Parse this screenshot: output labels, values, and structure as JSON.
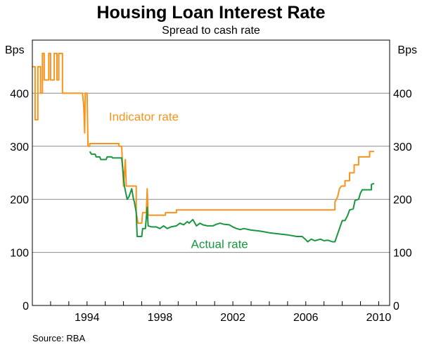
{
  "chart_data": {
    "type": "line",
    "title": "Housing Loan Interest Rate",
    "subtitle": "Spread to cash rate",
    "y_unit_left": "Bps",
    "y_unit_right": "Bps",
    "ylim": [
      0,
      500
    ],
    "yticks": [
      0,
      100,
      200,
      300,
      400
    ],
    "xlim": [
      1991.0,
      2010.6
    ],
    "xticks": [
      1994,
      1998,
      2002,
      2006,
      2010
    ],
    "grid": "horizontal",
    "source": "Source: RBA",
    "series": [
      {
        "name": "Indicator rate",
        "color": "#f7941d",
        "points": [
          [
            1991.0,
            450
          ],
          [
            1991.15,
            450
          ],
          [
            1991.15,
            350
          ],
          [
            1991.3,
            350
          ],
          [
            1991.3,
            450
          ],
          [
            1991.45,
            450
          ],
          [
            1991.45,
            400
          ],
          [
            1991.55,
            400
          ],
          [
            1991.55,
            475
          ],
          [
            1991.65,
            475
          ],
          [
            1991.65,
            425
          ],
          [
            1991.9,
            425
          ],
          [
            1991.9,
            475
          ],
          [
            1992.0,
            475
          ],
          [
            1992.0,
            425
          ],
          [
            1992.2,
            425
          ],
          [
            1992.2,
            475
          ],
          [
            1992.35,
            475
          ],
          [
            1992.35,
            425
          ],
          [
            1992.45,
            425
          ],
          [
            1992.45,
            475
          ],
          [
            1992.65,
            475
          ],
          [
            1992.65,
            400
          ],
          [
            1993.75,
            400
          ],
          [
            1993.75,
            400
          ],
          [
            1993.82,
            375
          ],
          [
            1993.87,
            325
          ],
          [
            1993.9,
            400
          ],
          [
            1994.0,
            400
          ],
          [
            1994.05,
            300
          ],
          [
            1994.15,
            300
          ],
          [
            1994.15,
            305
          ],
          [
            1995.75,
            305
          ],
          [
            1995.75,
            300
          ],
          [
            1995.9,
            300
          ],
          [
            1996.0,
            225
          ],
          [
            1996.1,
            275
          ],
          [
            1996.15,
            225
          ],
          [
            1996.7,
            225
          ],
          [
            1996.7,
            175
          ],
          [
            1996.8,
            155
          ],
          [
            1997.0,
            155
          ],
          [
            1997.05,
            175
          ],
          [
            1997.25,
            175
          ],
          [
            1997.3,
            220
          ],
          [
            1997.35,
            170
          ],
          [
            1998.3,
            170
          ],
          [
            1998.3,
            175
          ],
          [
            1998.9,
            175
          ],
          [
            1998.9,
            180
          ],
          [
            2007.6,
            180
          ],
          [
            2007.6,
            195
          ],
          [
            2007.75,
            205
          ],
          [
            2007.85,
            220
          ],
          [
            2007.95,
            225
          ],
          [
            2008.15,
            225
          ],
          [
            2008.15,
            235
          ],
          [
            2008.4,
            235
          ],
          [
            2008.4,
            250
          ],
          [
            2008.65,
            250
          ],
          [
            2008.65,
            265
          ],
          [
            2008.9,
            265
          ],
          [
            2008.9,
            280
          ],
          [
            2009.5,
            280
          ],
          [
            2009.5,
            290
          ],
          [
            2009.75,
            290
          ]
        ]
      },
      {
        "name": "Actual rate",
        "color": "#1a9641",
        "points": [
          [
            1994.15,
            290
          ],
          [
            1994.25,
            285
          ],
          [
            1994.45,
            285
          ],
          [
            1994.5,
            280
          ],
          [
            1994.7,
            280
          ],
          [
            1994.75,
            275
          ],
          [
            1995.05,
            275
          ],
          [
            1995.1,
            280
          ],
          [
            1995.35,
            280
          ],
          [
            1995.4,
            278
          ],
          [
            1995.9,
            278
          ],
          [
            1996.05,
            225
          ],
          [
            1996.2,
            200
          ],
          [
            1996.3,
            205
          ],
          [
            1996.45,
            220
          ],
          [
            1996.55,
            200
          ],
          [
            1996.6,
            195
          ],
          [
            1996.7,
            175
          ],
          [
            1996.75,
            130
          ],
          [
            1997.0,
            130
          ],
          [
            1997.05,
            145
          ],
          [
            1997.2,
            145
          ],
          [
            1997.3,
            185
          ],
          [
            1997.35,
            150
          ],
          [
            1997.55,
            148
          ],
          [
            1997.8,
            148
          ],
          [
            1998.0,
            145
          ],
          [
            1998.2,
            150
          ],
          [
            1998.4,
            145
          ],
          [
            1998.6,
            148
          ],
          [
            1998.9,
            150
          ],
          [
            1999.1,
            155
          ],
          [
            1999.3,
            152
          ],
          [
            1999.5,
            158
          ],
          [
            1999.6,
            155
          ],
          [
            1999.8,
            162
          ],
          [
            2000.0,
            150
          ],
          [
            2000.2,
            155
          ],
          [
            2000.35,
            152
          ],
          [
            2000.6,
            150
          ],
          [
            2000.9,
            150
          ],
          [
            2001.1,
            153
          ],
          [
            2001.3,
            155
          ],
          [
            2001.5,
            153
          ],
          [
            2001.8,
            152
          ],
          [
            2002.0,
            148
          ],
          [
            2002.2,
            145
          ],
          [
            2002.4,
            143
          ],
          [
            2002.6,
            145
          ],
          [
            2003.0,
            142
          ],
          [
            2003.5,
            140
          ],
          [
            2004.0,
            137
          ],
          [
            2004.5,
            135
          ],
          [
            2005.0,
            133
          ],
          [
            2005.5,
            130
          ],
          [
            2005.8,
            130
          ],
          [
            2006.0,
            124
          ],
          [
            2006.1,
            120
          ],
          [
            2006.3,
            125
          ],
          [
            2006.5,
            122
          ],
          [
            2006.8,
            125
          ],
          [
            2007.0,
            122
          ],
          [
            2007.2,
            123
          ],
          [
            2007.3,
            122
          ],
          [
            2007.45,
            120
          ],
          [
            2007.6,
            120
          ],
          [
            2007.75,
            135
          ],
          [
            2007.9,
            150
          ],
          [
            2008.0,
            160
          ],
          [
            2008.15,
            160
          ],
          [
            2008.3,
            170
          ],
          [
            2008.4,
            180
          ],
          [
            2008.6,
            182
          ],
          [
            2008.7,
            198
          ],
          [
            2008.9,
            200
          ],
          [
            2009.0,
            212
          ],
          [
            2009.1,
            218
          ],
          [
            2009.6,
            218
          ],
          [
            2009.6,
            228
          ],
          [
            2009.75,
            230
          ]
        ]
      }
    ],
    "annotations": [
      {
        "text": "Indicator rate",
        "series": "Indicator rate",
        "x": 1995.2,
        "y": 348
      },
      {
        "text": "Actual rate",
        "series": "Actual rate",
        "x": 1999.7,
        "y": 108
      }
    ]
  }
}
